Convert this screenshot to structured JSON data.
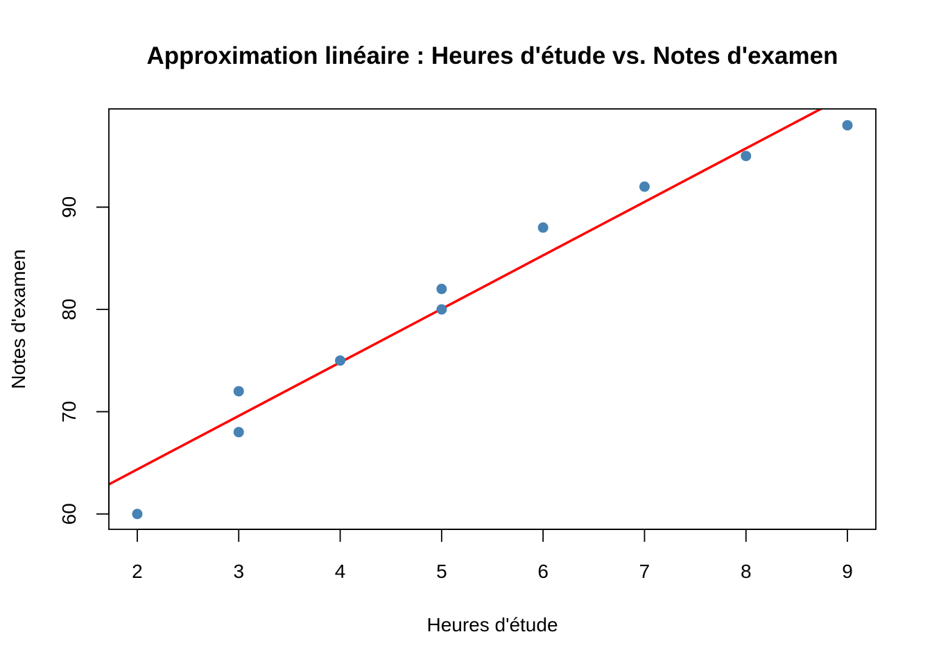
{
  "chart_data": {
    "type": "scatter",
    "title": "Approximation linéaire : Heures d'étude vs. Notes d'examen",
    "xlabel": "Heures d'étude",
    "ylabel": "Notes d'examen",
    "xlim": [
      1.72,
      9.28
    ],
    "ylim": [
      58.5,
      99.6
    ],
    "x_ticks": [
      2,
      3,
      4,
      5,
      6,
      7,
      8,
      9
    ],
    "y_ticks": [
      60,
      70,
      80,
      90
    ],
    "grid": false,
    "points": [
      {
        "x": 2,
        "y": 60
      },
      {
        "x": 3,
        "y": 68
      },
      {
        "x": 3,
        "y": 72
      },
      {
        "x": 4,
        "y": 75
      },
      {
        "x": 5,
        "y": 80
      },
      {
        "x": 5,
        "y": 82
      },
      {
        "x": 6,
        "y": 88
      },
      {
        "x": 7,
        "y": 92
      },
      {
        "x": 8,
        "y": 95
      },
      {
        "x": 9,
        "y": 98
      }
    ],
    "fit_line": {
      "intercept": 53.9,
      "slope": 5.23
    },
    "colors": {
      "points": "#4682B4",
      "fit_line": "#FF0000",
      "axes": "#000000"
    }
  }
}
